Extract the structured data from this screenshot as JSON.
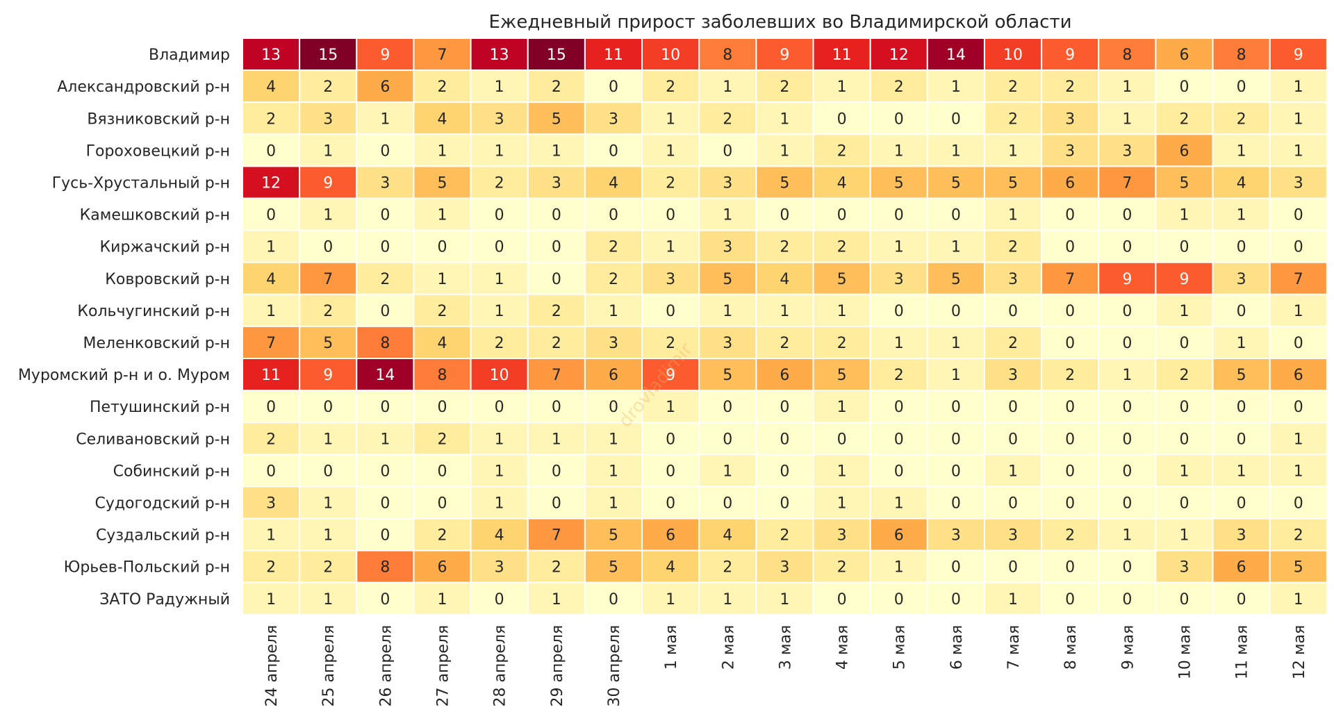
{
  "chart_data": {
    "type": "heatmap",
    "title": "Ежедневный прирост заболевших во Владимирской области",
    "xlabel": "",
    "ylabel": "",
    "columns": [
      "24 апреля",
      "25 апреля",
      "26 апреля",
      "27 апреля",
      "28 апреля",
      "29 апреля",
      "30 апреля",
      "1 мая",
      "2 мая",
      "3 мая",
      "4 мая",
      "5 мая",
      "6 мая",
      "7 мая",
      "8 мая",
      "9 мая",
      "10 мая",
      "11 мая",
      "12 мая"
    ],
    "rows": [
      "Владимир",
      "Александровский р-н",
      "Вязниковский р-н",
      "Гороховецкий р-н",
      "Гусь-Хрустальный р-н",
      "Камешковский р-н",
      "Киржачский р-н",
      "Ковровский р-н",
      "Кольчугинский р-н",
      "Меленковский р-н",
      "Муромский р-н и о. Муром",
      "Петушинский р-н",
      "Селивановский р-н",
      "Собинский р-н",
      "Судогодский р-н",
      "Суздальский р-н",
      "Юрьев-Польский р-н",
      "ЗАТО Радужный"
    ],
    "values": [
      [
        13,
        15,
        9,
        7,
        13,
        15,
        11,
        10,
        8,
        9,
        11,
        12,
        14,
        10,
        9,
        8,
        6,
        8,
        9
      ],
      [
        4,
        2,
        6,
        2,
        1,
        2,
        0,
        2,
        1,
        2,
        1,
        2,
        1,
        2,
        2,
        1,
        0,
        0,
        1
      ],
      [
        2,
        3,
        1,
        4,
        3,
        5,
        3,
        1,
        2,
        1,
        0,
        0,
        0,
        2,
        3,
        1,
        2,
        2,
        1
      ],
      [
        0,
        1,
        0,
        1,
        1,
        1,
        0,
        1,
        0,
        1,
        2,
        1,
        1,
        1,
        3,
        3,
        6,
        1,
        1
      ],
      [
        12,
        9,
        3,
        5,
        2,
        3,
        4,
        2,
        3,
        5,
        4,
        5,
        5,
        5,
        6,
        7,
        5,
        4,
        3
      ],
      [
        0,
        1,
        0,
        1,
        0,
        0,
        0,
        0,
        1,
        0,
        0,
        0,
        0,
        1,
        0,
        0,
        1,
        1,
        0
      ],
      [
        1,
        0,
        0,
        0,
        0,
        0,
        2,
        1,
        3,
        2,
        2,
        1,
        1,
        2,
        0,
        0,
        0,
        0,
        0
      ],
      [
        4,
        7,
        2,
        1,
        1,
        0,
        2,
        3,
        5,
        4,
        5,
        3,
        5,
        3,
        7,
        9,
        9,
        3,
        7
      ],
      [
        1,
        2,
        0,
        2,
        1,
        2,
        1,
        0,
        1,
        1,
        1,
        0,
        0,
        0,
        0,
        0,
        1,
        0,
        1
      ],
      [
        7,
        5,
        8,
        4,
        2,
        2,
        3,
        2,
        3,
        2,
        2,
        1,
        1,
        2,
        0,
        0,
        0,
        1,
        0
      ],
      [
        11,
        9,
        14,
        8,
        10,
        7,
        6,
        9,
        5,
        6,
        5,
        2,
        1,
        3,
        2,
        1,
        2,
        5,
        6
      ],
      [
        0,
        0,
        0,
        0,
        0,
        0,
        0,
        1,
        0,
        0,
        1,
        0,
        0,
        0,
        0,
        0,
        0,
        0,
        0
      ],
      [
        2,
        1,
        1,
        2,
        1,
        1,
        1,
        0,
        0,
        0,
        0,
        0,
        0,
        0,
        0,
        0,
        0,
        0,
        1
      ],
      [
        0,
        0,
        0,
        0,
        1,
        0,
        1,
        0,
        1,
        0,
        1,
        0,
        0,
        1,
        0,
        0,
        1,
        1,
        1
      ],
      [
        3,
        1,
        0,
        0,
        1,
        0,
        1,
        0,
        0,
        0,
        1,
        1,
        0,
        0,
        0,
        0,
        0,
        0,
        0
      ],
      [
        1,
        1,
        0,
        2,
        4,
        7,
        5,
        6,
        4,
        2,
        3,
        6,
        3,
        3,
        2,
        1,
        1,
        3,
        2
      ],
      [
        2,
        2,
        8,
        6,
        3,
        2,
        5,
        4,
        2,
        3,
        2,
        1,
        0,
        0,
        0,
        0,
        3,
        6,
        5
      ],
      [
        1,
        1,
        0,
        1,
        0,
        1,
        0,
        1,
        1,
        1,
        0,
        0,
        0,
        1,
        0,
        0,
        0,
        0,
        1
      ]
    ],
    "vmin": 0,
    "vmax": 15,
    "colormap": "YlOrRd",
    "watermark": "drovladimir"
  }
}
